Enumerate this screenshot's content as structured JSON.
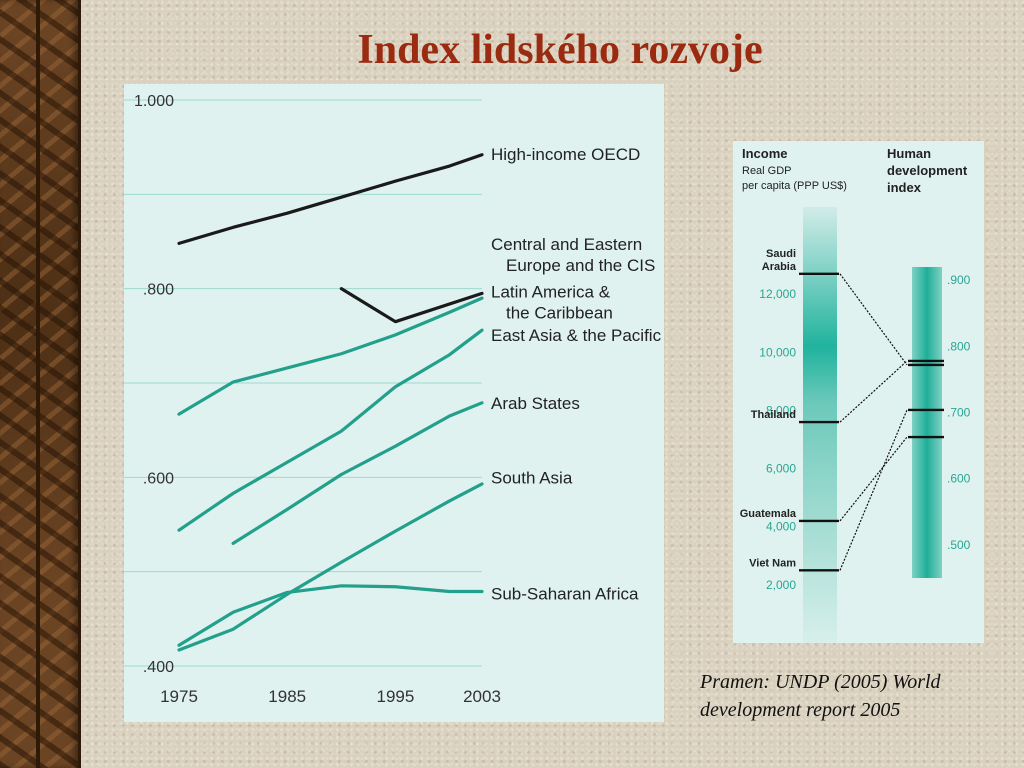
{
  "slide": {
    "title": "Index lidského rozvoje",
    "source_line1": "Pramen: UNDP (2005) World",
    "source_line2": "development report 2005"
  },
  "chart_data": [
    {
      "type": "line",
      "title": "",
      "xlabel": "",
      "ylabel": "",
      "x": [
        1975,
        1980,
        1985,
        1990,
        1995,
        2000,
        2003
      ],
      "xticks": [
        "1975",
        "1985",
        "1995",
        "2003"
      ],
      "yticks": [
        ".400",
        ".600",
        ".800",
        "1.000"
      ],
      "ylim": [
        0.4,
        1.0
      ],
      "xlim": [
        1975,
        2003
      ],
      "grid": "horizontal",
      "series": [
        {
          "name": "High-income OECD",
          "color": "#1a1a1a",
          "x": [
            1975,
            1980,
            1985,
            1990,
            1995,
            2000,
            2003
          ],
          "values": [
            0.848,
            0.865,
            0.88,
            0.897,
            0.914,
            0.93,
            0.942
          ]
        },
        {
          "name": "Central and Eastern Europe and the CIS",
          "color": "#1a1a1a",
          "x": [
            1990,
            1995,
            2003
          ],
          "values": [
            0.8,
            0.765,
            0.795
          ]
        },
        {
          "name": "Latin America & the Caribbean",
          "color": "#22a08c",
          "x": [
            1975,
            1980,
            1985,
            1990,
            1995,
            2000,
            2003
          ],
          "values": [
            0.667,
            0.701,
            0.716,
            0.731,
            0.751,
            0.775,
            0.79
          ]
        },
        {
          "name": "East Asia & the Pacific",
          "color": "#22a08c",
          "x": [
            1975,
            1980,
            1985,
            1990,
            1995,
            2000,
            2003
          ],
          "values": [
            0.544,
            0.583,
            0.616,
            0.649,
            0.696,
            0.73,
            0.756
          ]
        },
        {
          "name": "Arab States",
          "color": "#22a08c",
          "x": [
            1980,
            1985,
            1990,
            1995,
            2000,
            2003
          ],
          "values": [
            0.53,
            0.566,
            0.603,
            0.633,
            0.665,
            0.679
          ]
        },
        {
          "name": "South Asia",
          "color": "#22a08c",
          "x": [
            1975,
            1980,
            1985,
            1990,
            1995,
            2000,
            2003
          ],
          "values": [
            0.417,
            0.439,
            0.476,
            0.51,
            0.543,
            0.575,
            0.593
          ]
        },
        {
          "name": "Sub-Saharan Africa",
          "color": "#22a08c",
          "x": [
            1975,
            1980,
            1985,
            1990,
            1995,
            2000,
            2003
          ],
          "values": [
            0.422,
            0.457,
            0.478,
            0.485,
            0.484,
            0.479,
            0.479
          ]
        }
      ],
      "labels": [
        {
          "lines": [
            "High-income OECD"
          ],
          "y": 0.943
        },
        {
          "lines": [
            "Central and Eastern",
            "Europe and the CIS"
          ],
          "y": 0.836
        },
        {
          "lines": [
            "Latin America &",
            "the Caribbean"
          ],
          "y": 0.786
        },
        {
          "lines": [
            "East Asia & the Pacific"
          ],
          "y": 0.751
        },
        {
          "lines": [
            "Arab States"
          ],
          "y": 0.679
        },
        {
          "lines": [
            "South Asia"
          ],
          "y": 0.6
        },
        {
          "lines": [
            "Sub-Saharan Africa"
          ],
          "y": 0.477
        }
      ]
    },
    {
      "type": "bar",
      "income_title": "Income",
      "income_subtitle1": "Real GDP",
      "income_subtitle2": "per capita (PPP US$)",
      "hdi_title1": "Human",
      "hdi_title2": "development",
      "hdi_title3": "index",
      "income_ticks": [
        {
          "label": "2,000",
          "value": 2000
        },
        {
          "label": "4,000",
          "value": 4000
        },
        {
          "label": "6,000",
          "value": 6000
        },
        {
          "label": "8,000",
          "value": 8000
        },
        {
          "label": "10,000",
          "value": 10000
        },
        {
          "label": "12,000",
          "value": 12000
        }
      ],
      "income_range": [
        0,
        15000
      ],
      "hdi_ticks": [
        {
          "label": ".500",
          "value": 0.5
        },
        {
          "label": ".600",
          "value": 0.6
        },
        {
          "label": ".700",
          "value": 0.7
        },
        {
          "label": ".800",
          "value": 0.8
        },
        {
          "label": ".900",
          "value": 0.9
        }
      ],
      "hdi_range": [
        0.45,
        0.92
      ],
      "countries": [
        {
          "name_lines": [
            "Saudi",
            "Arabia"
          ],
          "income": 12700,
          "hdi": 0.772
        },
        {
          "name_lines": [
            "Thailand"
          ],
          "income": 7600,
          "hdi": 0.778
        },
        {
          "name_lines": [
            "Guatemala"
          ],
          "income": 4200,
          "hdi": 0.663
        },
        {
          "name_lines": [
            "Viet Nam"
          ],
          "income": 2500,
          "hdi": 0.704
        }
      ]
    }
  ]
}
